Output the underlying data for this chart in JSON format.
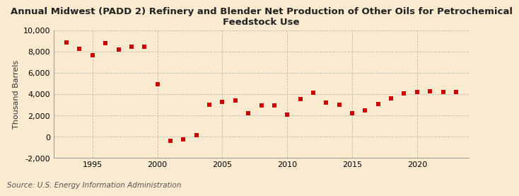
{
  "title": "Annual Midwest (PADD 2) Refinery and Blender Net Production of Other Oils for Petrochemical\nFeedstock Use",
  "ylabel": "Thousand Barrels",
  "source": "Source: U.S. Energy Information Administration",
  "background_color": "#faebd0",
  "dot_color": "#cc0000",
  "years": [
    1993,
    1994,
    1995,
    1996,
    1997,
    1998,
    1999,
    2000,
    2001,
    2002,
    2003,
    2004,
    2005,
    2006,
    2007,
    2008,
    2009,
    2010,
    2011,
    2012,
    2013,
    2014,
    2015,
    2016,
    2017,
    2018,
    2019,
    2020,
    2021,
    2022,
    2023
  ],
  "values": [
    8900,
    8300,
    7700,
    8800,
    8200,
    8500,
    8500,
    4950,
    -350,
    -250,
    150,
    3050,
    3300,
    3450,
    2250,
    2950,
    2950,
    2100,
    3550,
    4150,
    3200,
    3000,
    2200,
    2500,
    3100,
    3600,
    4100,
    4200,
    4250,
    4200,
    4200
  ],
  "ylim": [
    -2000,
    10000
  ],
  "yticks": [
    -2000,
    0,
    2000,
    4000,
    6000,
    8000,
    10000
  ],
  "xlim": [
    1992,
    2024
  ],
  "xticks": [
    1995,
    2000,
    2005,
    2010,
    2015,
    2020
  ],
  "grid_color": "#bbbbbb",
  "title_fontsize": 9.5,
  "axis_fontsize": 8,
  "source_fontsize": 7.5,
  "marker_size": 14
}
